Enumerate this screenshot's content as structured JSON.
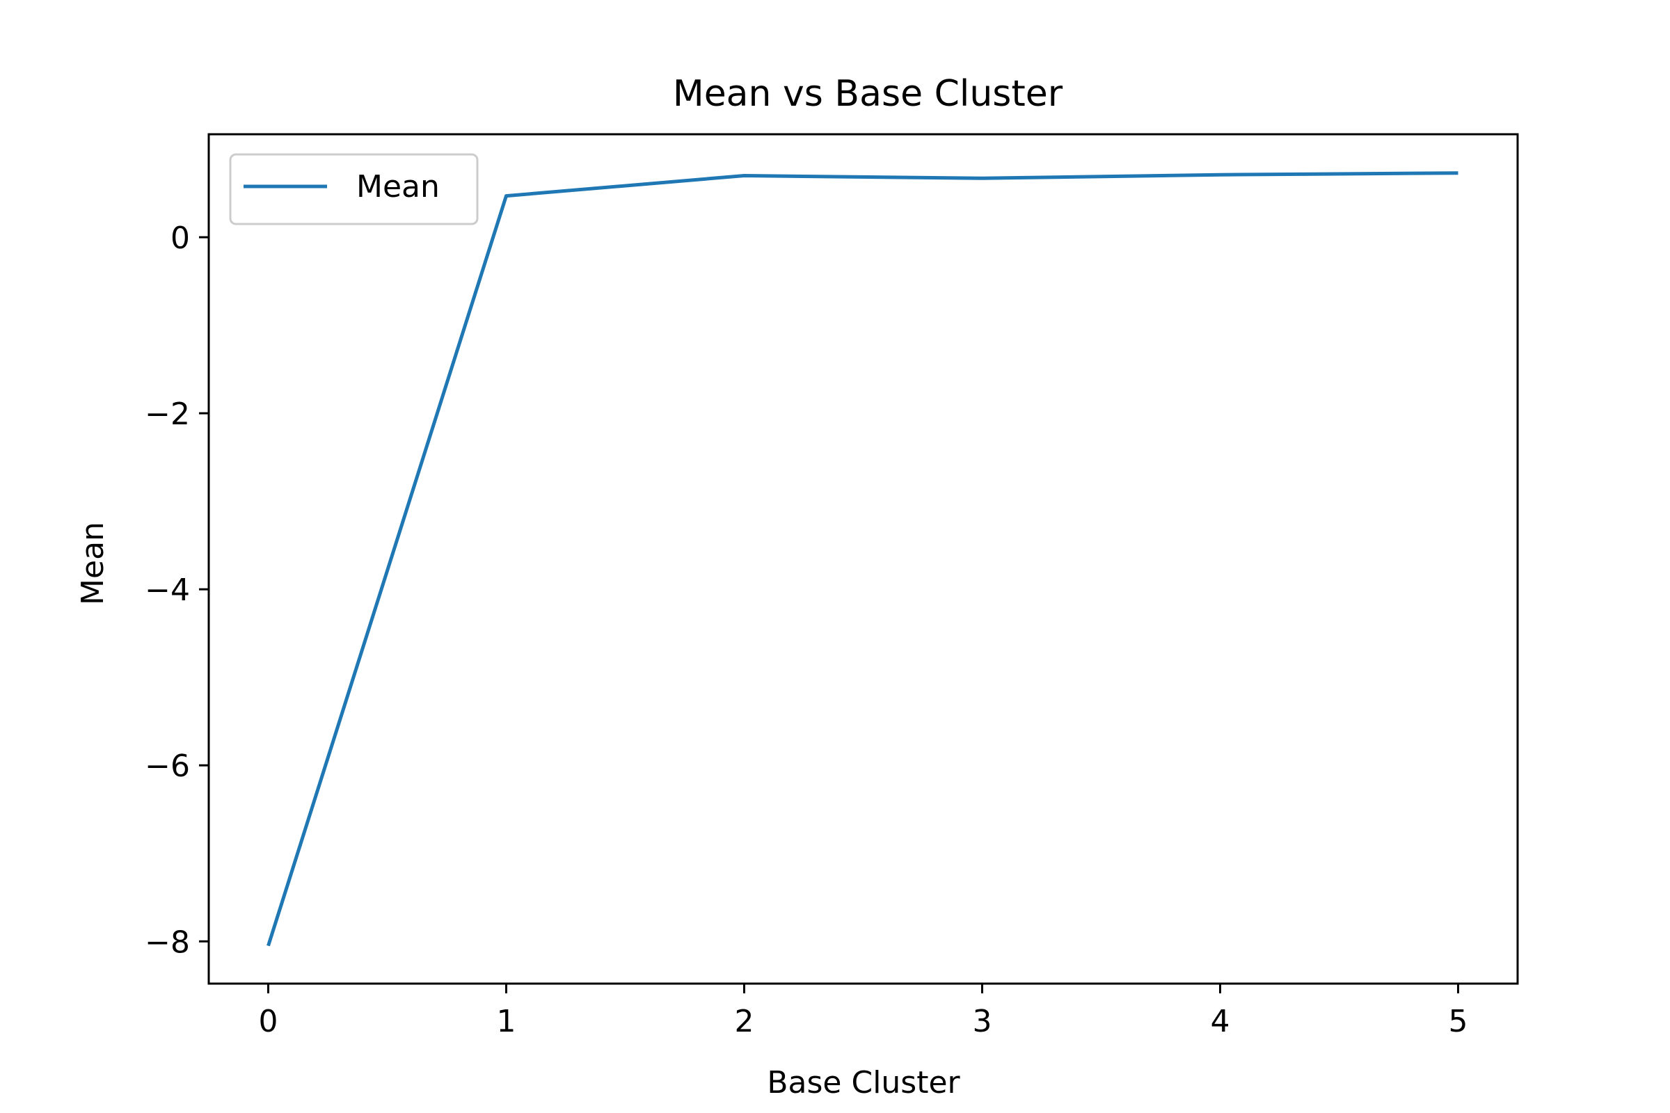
{
  "chart_data": {
    "type": "line",
    "title": "Mean vs Base Cluster",
    "xlabel": "Base Cluster",
    "ylabel": "Mean",
    "x": [
      0,
      1,
      2,
      3,
      4,
      5
    ],
    "series": [
      {
        "name": "Mean",
        "color": "#1f77b4",
        "values": [
          -8.05,
          0.47,
          0.7,
          0.67,
          0.71,
          0.73
        ]
      }
    ],
    "xlim": [
      -0.25,
      5.25
    ],
    "ylim": [
      -8.48,
      1.17
    ],
    "xticks": [
      0,
      1,
      2,
      3,
      4,
      5
    ],
    "xtick_labels": [
      "0",
      "1",
      "2",
      "3",
      "4",
      "5"
    ],
    "yticks": [
      0,
      -2,
      -4,
      -6,
      -8
    ],
    "ytick_labels": [
      "0",
      "−2",
      "−4",
      "−6",
      "−8"
    ],
    "grid": false,
    "legend": {
      "position": "upper-left",
      "entries": [
        "Mean"
      ]
    }
  }
}
